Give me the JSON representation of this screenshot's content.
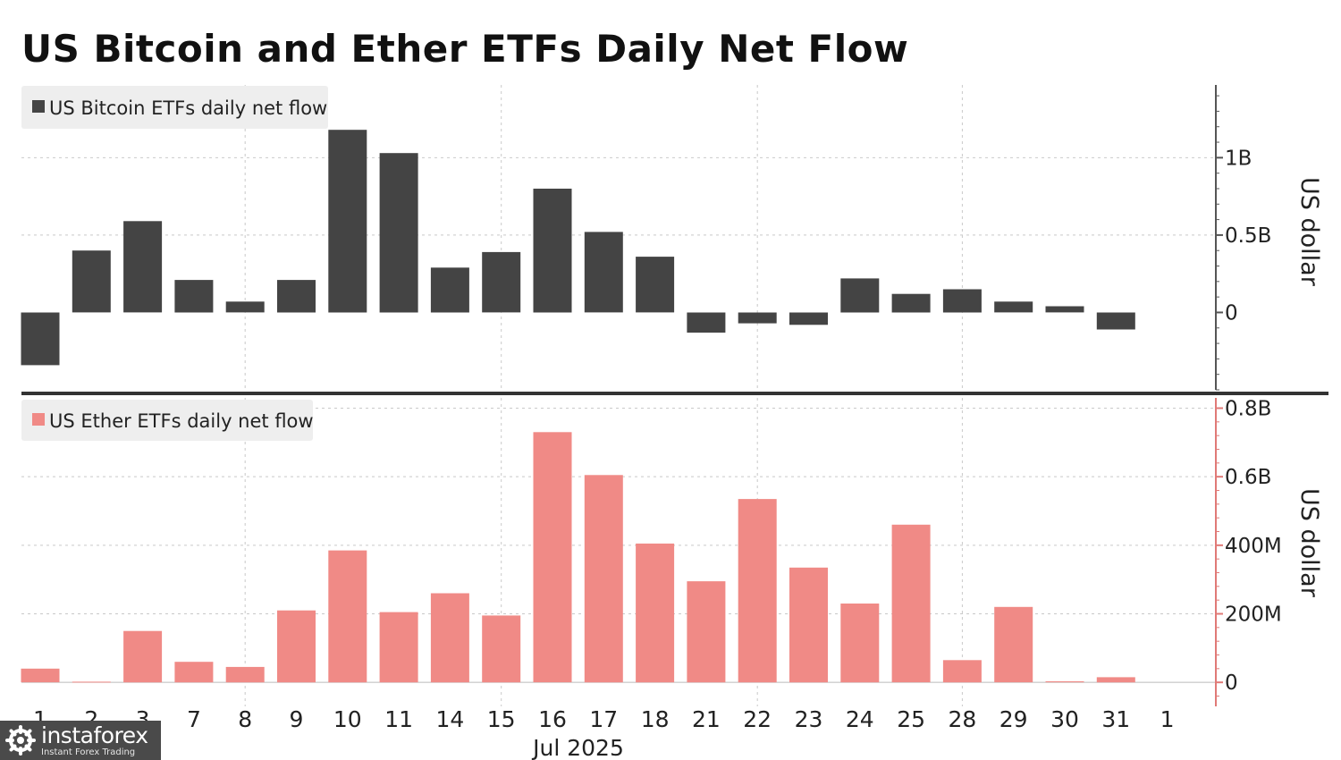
{
  "title": "US Bitcoin and Ether ETFs Daily Net Flow",
  "watermark": {
    "brand": "instaforex",
    "tagline": "Instant Forex Trading"
  },
  "chart_data": [
    {
      "type": "bar",
      "series": [
        {
          "name": "US Bitcoin ETFs daily net flow",
          "color": "#444444"
        }
      ],
      "categories": [
        "1",
        "2",
        "3",
        "7",
        "8",
        "9",
        "10",
        "11",
        "14",
        "15",
        "16",
        "17",
        "18",
        "21",
        "22",
        "23",
        "24",
        "25",
        "28",
        "29",
        "30",
        "31",
        "1"
      ],
      "values": [
        -0.34,
        0.4,
        0.59,
        0.21,
        0.07,
        0.21,
        1.18,
        1.03,
        0.29,
        0.39,
        0.8,
        0.52,
        0.36,
        -0.13,
        -0.07,
        -0.08,
        0.22,
        0.12,
        0.15,
        0.07,
        0.04,
        -0.11,
        null
      ],
      "unit": "B",
      "y_ticks": [
        {
          "value": 1.0,
          "label": "1B"
        },
        {
          "value": 0.5,
          "label": "0.5B"
        },
        {
          "value": 0,
          "label": "0"
        }
      ],
      "ylim": [
        -0.5,
        1.47
      ],
      "ylabel": "US dollar",
      "legend_position": "top-left",
      "grid": true
    },
    {
      "type": "bar",
      "series": [
        {
          "name": "US Ether ETFs daily net flow",
          "color": "#f08a86"
        }
      ],
      "categories": [
        "1",
        "2",
        "3",
        "7",
        "8",
        "9",
        "10",
        "11",
        "14",
        "15",
        "16",
        "17",
        "18",
        "21",
        "22",
        "23",
        "24",
        "25",
        "28",
        "29",
        "30",
        "31",
        "1"
      ],
      "values": [
        0.04,
        0.002,
        0.15,
        0.06,
        0.045,
        0.21,
        0.385,
        0.205,
        0.26,
        0.195,
        0.73,
        0.605,
        0.405,
        0.295,
        0.535,
        0.335,
        0.23,
        0.46,
        0.065,
        0.22,
        0.003,
        0.015,
        null
      ],
      "unit": "B",
      "y_ticks": [
        {
          "value": 0.8,
          "label": "0.8B"
        },
        {
          "value": 0.6,
          "label": "0.6B"
        },
        {
          "value": 0.4,
          "label": "400M"
        },
        {
          "value": 0.2,
          "label": "200M"
        },
        {
          "value": 0,
          "label": "0"
        }
      ],
      "ylim": [
        -0.07,
        0.83
      ],
      "ylabel": "US dollar",
      "legend_position": "top-left",
      "grid": true
    }
  ],
  "x_axis": {
    "month_label": "Jul 2025"
  }
}
